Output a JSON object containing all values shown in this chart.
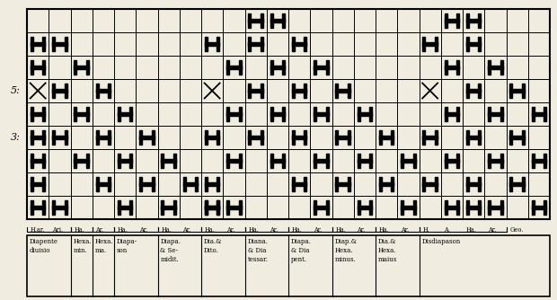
{
  "bg_color": "#f0ece0",
  "grid_color": "#000000",
  "text_color": "#000000",
  "fig_width": 6.2,
  "fig_height": 3.34,
  "dpi": 100,
  "grid_rows": 9,
  "grid_cols": 24,
  "row_label_5_row": 5,
  "row_label_3_row": 3,
  "bottom_ha_labels": [
    "H.ar.",
    "Ari.",
    "Ha.",
    "Ar.",
    "Ha.",
    "Ar.",
    "Ha.",
    "Ar.",
    "Ha.",
    "Ar.",
    "Ha.",
    "Ar.",
    "Ha.",
    "Ar.",
    "Ha.",
    "Ar.",
    "Ha.",
    "Ar.",
    "H.",
    "A.",
    "Ha.",
    "Ar.",
    "Geo."
  ],
  "bottom_section_labels": [
    {
      "text": "Diapente\ndiuisio",
      "cols": 2
    },
    {
      "text": "Hexa.\nmin.",
      "cols": 1
    },
    {
      "text": "Hexa.\nma.",
      "cols": 1
    },
    {
      "text": "Diapa-\nson",
      "cols": 2
    },
    {
      "text": "Diapa.\n& Se-\nmidit.",
      "cols": 2
    },
    {
      "text": "Dia.&\nDito.",
      "cols": 2
    },
    {
      "text": "Diana.\n& Dia\ntessar.",
      "cols": 2
    },
    {
      "text": "Diapa.\n& Dia\npent.",
      "cols": 2
    },
    {
      "text": "Diap.&\nHexa.\nminus.",
      "cols": 2
    },
    {
      "text": "Dia.&\nHexa.\nmaius",
      "cols": 2
    },
    {
      "text": "Disdiapason",
      "cols": 4
    }
  ],
  "note_positions": [
    {
      "row": 7,
      "col": 0,
      "type": "H"
    },
    {
      "row": 7,
      "col": 1,
      "type": "H"
    },
    {
      "row": 6,
      "col": 0,
      "type": "H"
    },
    {
      "row": 6,
      "col": 2,
      "type": "H"
    },
    {
      "row": 5,
      "col": 0,
      "type": "X"
    },
    {
      "row": 5,
      "col": 1,
      "type": "H"
    },
    {
      "row": 5,
      "col": 3,
      "type": "H"
    },
    {
      "row": 4,
      "col": 0,
      "type": "H"
    },
    {
      "row": 4,
      "col": 2,
      "type": "H"
    },
    {
      "row": 4,
      "col": 4,
      "type": "H"
    },
    {
      "row": 3,
      "col": 0,
      "type": "H"
    },
    {
      "row": 3,
      "col": 1,
      "type": "H"
    },
    {
      "row": 3,
      "col": 3,
      "type": "H"
    },
    {
      "row": 3,
      "col": 5,
      "type": "H"
    },
    {
      "row": 2,
      "col": 0,
      "type": "H"
    },
    {
      "row": 2,
      "col": 2,
      "type": "H"
    },
    {
      "row": 2,
      "col": 4,
      "type": "H"
    },
    {
      "row": 2,
      "col": 6,
      "type": "H"
    },
    {
      "row": 1,
      "col": 0,
      "type": "H"
    },
    {
      "row": 1,
      "col": 3,
      "type": "H"
    },
    {
      "row": 1,
      "col": 5,
      "type": "H"
    },
    {
      "row": 1,
      "col": 7,
      "type": "H"
    },
    {
      "row": 0,
      "col": 0,
      "type": "H"
    },
    {
      "row": 0,
      "col": 1,
      "type": "H"
    },
    {
      "row": 0,
      "col": 4,
      "type": "H"
    },
    {
      "row": 0,
      "col": 6,
      "type": "H"
    },
    {
      "row": 0,
      "col": 8,
      "type": "H"
    },
    {
      "row": 8,
      "col": 10,
      "type": "H"
    },
    {
      "row": 8,
      "col": 11,
      "type": "H"
    },
    {
      "row": 7,
      "col": 8,
      "type": "H"
    },
    {
      "row": 7,
      "col": 10,
      "type": "H"
    },
    {
      "row": 7,
      "col": 12,
      "type": "H"
    },
    {
      "row": 6,
      "col": 9,
      "type": "H"
    },
    {
      "row": 6,
      "col": 11,
      "type": "H"
    },
    {
      "row": 6,
      "col": 13,
      "type": "H"
    },
    {
      "row": 5,
      "col": 8,
      "type": "X"
    },
    {
      "row": 5,
      "col": 10,
      "type": "H"
    },
    {
      "row": 5,
      "col": 12,
      "type": "H"
    },
    {
      "row": 5,
      "col": 14,
      "type": "H"
    },
    {
      "row": 4,
      "col": 9,
      "type": "H"
    },
    {
      "row": 4,
      "col": 11,
      "type": "H"
    },
    {
      "row": 4,
      "col": 13,
      "type": "H"
    },
    {
      "row": 4,
      "col": 15,
      "type": "H"
    },
    {
      "row": 3,
      "col": 8,
      "type": "H"
    },
    {
      "row": 3,
      "col": 10,
      "type": "H"
    },
    {
      "row": 3,
      "col": 12,
      "type": "H"
    },
    {
      "row": 3,
      "col": 14,
      "type": "H"
    },
    {
      "row": 3,
      "col": 16,
      "type": "H"
    },
    {
      "row": 2,
      "col": 9,
      "type": "H"
    },
    {
      "row": 2,
      "col": 11,
      "type": "H"
    },
    {
      "row": 2,
      "col": 13,
      "type": "H"
    },
    {
      "row": 2,
      "col": 15,
      "type": "H"
    },
    {
      "row": 2,
      "col": 17,
      "type": "H"
    },
    {
      "row": 1,
      "col": 8,
      "type": "H"
    },
    {
      "row": 1,
      "col": 12,
      "type": "H"
    },
    {
      "row": 1,
      "col": 14,
      "type": "H"
    },
    {
      "row": 1,
      "col": 16,
      "type": "H"
    },
    {
      "row": 1,
      "col": 18,
      "type": "H"
    },
    {
      "row": 0,
      "col": 8,
      "type": "H"
    },
    {
      "row": 0,
      "col": 9,
      "type": "H"
    },
    {
      "row": 0,
      "col": 13,
      "type": "H"
    },
    {
      "row": 0,
      "col": 15,
      "type": "H"
    },
    {
      "row": 0,
      "col": 17,
      "type": "H"
    },
    {
      "row": 0,
      "col": 19,
      "type": "H"
    },
    {
      "row": 8,
      "col": 19,
      "type": "H"
    },
    {
      "row": 8,
      "col": 20,
      "type": "H"
    },
    {
      "row": 7,
      "col": 18,
      "type": "H"
    },
    {
      "row": 7,
      "col": 20,
      "type": "H"
    },
    {
      "row": 6,
      "col": 19,
      "type": "H"
    },
    {
      "row": 6,
      "col": 21,
      "type": "H"
    },
    {
      "row": 5,
      "col": 18,
      "type": "X"
    },
    {
      "row": 5,
      "col": 20,
      "type": "H"
    },
    {
      "row": 5,
      "col": 22,
      "type": "H"
    },
    {
      "row": 4,
      "col": 19,
      "type": "H"
    },
    {
      "row": 4,
      "col": 21,
      "type": "H"
    },
    {
      "row": 4,
      "col": 23,
      "type": "H"
    },
    {
      "row": 3,
      "col": 18,
      "type": "H"
    },
    {
      "row": 3,
      "col": 20,
      "type": "H"
    },
    {
      "row": 3,
      "col": 22,
      "type": "H"
    },
    {
      "row": 2,
      "col": 19,
      "type": "H"
    },
    {
      "row": 2,
      "col": 21,
      "type": "H"
    },
    {
      "row": 2,
      "col": 23,
      "type": "H"
    },
    {
      "row": 1,
      "col": 20,
      "type": "H"
    },
    {
      "row": 1,
      "col": 22,
      "type": "H"
    },
    {
      "row": 0,
      "col": 20,
      "type": "H"
    },
    {
      "row": 0,
      "col": 21,
      "type": "H"
    },
    {
      "row": 0,
      "col": 23,
      "type": "H"
    }
  ]
}
